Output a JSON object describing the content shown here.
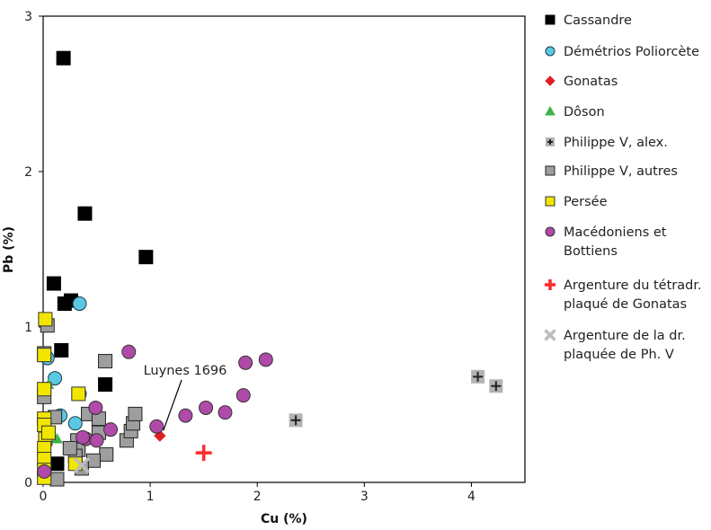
{
  "chart_data": {
    "type": "scatter",
    "xlabel": "Cu (%)",
    "ylabel": "Pb (%)",
    "xlim": [
      0,
      4.5
    ],
    "ylim": [
      0,
      3
    ],
    "xticks": [
      "0",
      "1",
      "2",
      "3",
      "4"
    ],
    "yticks": [
      "0",
      "1",
      "2",
      "3"
    ],
    "grid": false,
    "legend_position": "right",
    "series": [
      {
        "name": "Cassandre",
        "marker": "square",
        "color": "#000000",
        "stroke": "#000000",
        "points": [
          [
            0.19,
            2.73
          ],
          [
            0.39,
            1.73
          ],
          [
            0.96,
            1.45
          ],
          [
            0.1,
            1.28
          ],
          [
            0.26,
            1.17
          ],
          [
            0.2,
            1.15
          ],
          [
            0.17,
            0.85
          ],
          [
            0.58,
            0.63
          ],
          [
            0.13,
            0.12
          ]
        ]
      },
      {
        "name": "Démétrios Poliorcète",
        "marker": "circle",
        "color": "#5bc8e3",
        "stroke": "#1a3a4a",
        "points": [
          [
            0.34,
            1.15
          ],
          [
            0.11,
            0.67
          ],
          [
            0.04,
            0.8
          ],
          [
            0.16,
            0.43
          ],
          [
            0.3,
            0.38
          ],
          [
            0.34,
            0.57
          ]
        ]
      },
      {
        "name": "Gonatas",
        "marker": "diamond",
        "color": "#e02020",
        "stroke": "#e02020",
        "points": [
          [
            1.09,
            0.3
          ]
        ]
      },
      {
        "name": "Dôson",
        "marker": "triangle",
        "color": "#3cb44b",
        "stroke": "#3cb44b",
        "points": [
          [
            0.05,
            0.63
          ],
          [
            0.13,
            0.28
          ]
        ]
      },
      {
        "name": "Philippe V, alex.",
        "marker": "square-plus",
        "color": "#b3b3b3",
        "stroke": "#222222",
        "points": [
          [
            2.36,
            0.4
          ],
          [
            4.06,
            0.68
          ],
          [
            4.23,
            0.62
          ]
        ]
      },
      {
        "name": "Philippe V, autres",
        "marker": "square",
        "color": "#9e9e9e",
        "stroke": "#222222",
        "points": [
          [
            0.04,
            1.01
          ],
          [
            0.01,
            0.83
          ],
          [
            0.01,
            0.55
          ],
          [
            0.11,
            0.42
          ],
          [
            0.13,
            0.02
          ],
          [
            0.32,
            0.27
          ],
          [
            0.33,
            0.21
          ],
          [
            0.42,
            0.44
          ],
          [
            0.52,
            0.41
          ],
          [
            0.52,
            0.32
          ],
          [
            0.58,
            0.78
          ],
          [
            0.59,
            0.18
          ],
          [
            0.47,
            0.14
          ],
          [
            0.78,
            0.27
          ],
          [
            0.82,
            0.33
          ],
          [
            0.84,
            0.38
          ],
          [
            0.86,
            0.44
          ],
          [
            0.3,
            0.17
          ],
          [
            0.36,
            0.09
          ],
          [
            0.25,
            0.22
          ]
        ]
      },
      {
        "name": "Persée",
        "marker": "square",
        "color": "#f2e600",
        "stroke": "#333333",
        "points": [
          [
            0.02,
            1.05
          ],
          [
            0.01,
            0.82
          ],
          [
            0.01,
            0.6
          ],
          [
            0.01,
            0.41
          ],
          [
            0.01,
            0.37
          ],
          [
            0.02,
            0.28
          ],
          [
            0.05,
            0.32
          ],
          [
            0.01,
            0.22
          ],
          [
            0.01,
            0.15
          ],
          [
            0.01,
            0.08
          ],
          [
            0.01,
            0.03
          ],
          [
            0.3,
            0.12
          ],
          [
            0.33,
            0.57
          ]
        ]
      },
      {
        "name": "Macédoniens et Bottiens",
        "marker": "circle",
        "color": "#b04aa8",
        "stroke": "#333333",
        "points": [
          [
            0.8,
            0.84
          ],
          [
            0.49,
            0.48
          ],
          [
            0.63,
            0.34
          ],
          [
            0.4,
            0.28
          ],
          [
            0.5,
            0.27
          ],
          [
            0.37,
            0.29
          ],
          [
            1.06,
            0.36
          ],
          [
            1.33,
            0.43
          ],
          [
            1.52,
            0.48
          ],
          [
            1.7,
            0.45
          ],
          [
            1.87,
            0.56
          ],
          [
            1.89,
            0.77
          ],
          [
            2.08,
            0.79
          ],
          [
            0.01,
            0.07
          ]
        ]
      },
      {
        "name": "Argenture du tétradr. plaqué de Gonatas",
        "legend_lines": [
          "Argenture du tétradr.",
          "plaqué de Gonatas"
        ],
        "marker": "plus",
        "color": "#ff2a2a",
        "stroke": "#ff2a2a",
        "points": [
          [
            1.5,
            0.19
          ]
        ]
      },
      {
        "name": "Argenture de la dr. plaquée de Ph. V",
        "legend_lines": [
          "Argenture de la dr.",
          "plaquée de Ph. V"
        ],
        "marker": "x",
        "color": "#bdbdbd",
        "stroke": "#bdbdbd",
        "points": [
          [
            0.36,
            0.11
          ]
        ]
      }
    ],
    "legend_series": [
      {
        "name": "Cassandre",
        "lines": [
          "Cassandre"
        ]
      },
      {
        "name": "Démétrios Poliorcète",
        "lines": [
          "Démétrios Poliorcète"
        ]
      },
      {
        "name": "Gonatas",
        "lines": [
          "Gonatas"
        ]
      },
      {
        "name": "Dôson",
        "lines": [
          "Dôson"
        ]
      },
      {
        "name": "Philippe V, alex.",
        "lines": [
          "Philippe V, alex."
        ]
      },
      {
        "name": "Philippe V, autres",
        "lines": [
          "Philippe V, autres"
        ]
      },
      {
        "name": "Persée",
        "lines": [
          "Persée"
        ]
      },
      {
        "name": "Macédoniens et Bottiens",
        "lines": [
          "Macédoniens et",
          "Bottiens"
        ]
      },
      {
        "name": "Argenture du tétradr. plaqué de Gonatas",
        "lines": [
          "Argenture du tétradr.",
          "plaqué de Gonatas"
        ]
      },
      {
        "name": "Argenture de la dr. plaquée de Ph. V",
        "lines": [
          "Argenture de la dr.",
          "plaquée de Ph. V"
        ]
      }
    ],
    "annotations": [
      {
        "text": "Luynes 1696",
        "points_to": [
          1.09,
          0.3
        ]
      }
    ]
  }
}
